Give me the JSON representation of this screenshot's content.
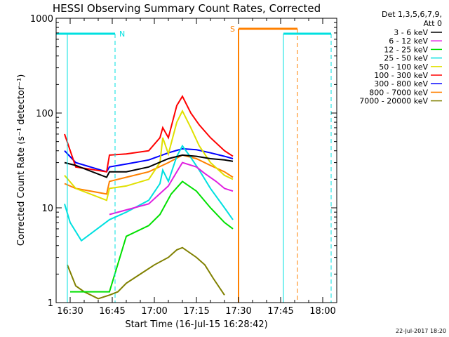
{
  "chart_data": {
    "type": "line",
    "title": "HESSI Observing Summary Count Rates, Corrected",
    "xlabel": "Start Time (16-Jul-15 16:28:42)",
    "ylabel": "Corrected Count Rate (s⁻¹ detector⁻¹)",
    "yscale": "log",
    "ylim": [
      1,
      1000
    ],
    "xlim": [
      "16:25",
      "18:05"
    ],
    "x_ticks": [
      "16:30",
      "16:45",
      "17:00",
      "17:15",
      "17:30",
      "17:45",
      "18:00"
    ],
    "y_ticks": [
      "1",
      "10",
      "100",
      "1000"
    ],
    "legend_header": [
      "Det 1,3,5,6,7,9,",
      "Att 0"
    ],
    "legend_position": "right",
    "timestamp": "22-Jul-2017 18:20",
    "series": [
      {
        "name": "3 - 6 keV",
        "color": "#000000",
        "x": [
          "16:28",
          "16:32",
          "16:43",
          "16:44",
          "16:50",
          "16:58",
          "17:05",
          "17:10",
          "17:15",
          "17:20",
          "17:25",
          "17:28"
        ],
        "values": [
          30,
          28,
          21,
          24,
          24,
          27,
          33,
          36,
          35,
          33,
          32,
          31
        ]
      },
      {
        "name": "6 - 12 keV",
        "color": "#e020e0",
        "x": [
          "16:44",
          "16:50",
          "16:58",
          "17:05",
          "17:08",
          "17:10",
          "17:15",
          "17:18",
          "17:22",
          "17:25",
          "17:28"
        ],
        "values": [
          8.5,
          9.5,
          11,
          17,
          24,
          30,
          27,
          23,
          19,
          16,
          15
        ]
      },
      {
        "name": "12 - 25 keV",
        "color": "#00e000",
        "x": [
          "16:30",
          "16:44",
          "16:50",
          "16:58",
          "17:02",
          "17:06",
          "17:10",
          "17:15",
          "17:20",
          "17:25",
          "17:28"
        ],
        "values": [
          1.3,
          1.3,
          5,
          6.5,
          8.5,
          14,
          19,
          15,
          10,
          7,
          6
        ]
      },
      {
        "name": "25 - 50 keV",
        "color": "#00e0e0",
        "x": [
          "16:28",
          "16:30",
          "16:34",
          "16:44",
          "16:50",
          "16:58",
          "17:02",
          "17:03",
          "17:05",
          "17:08",
          "17:10",
          "17:13",
          "17:16",
          "17:20",
          "17:25",
          "17:28"
        ],
        "values": [
          11,
          7,
          4.5,
          7.5,
          9,
          12,
          18,
          25,
          19,
          35,
          45,
          34,
          25,
          16,
          10,
          7.5
        ]
      },
      {
        "name": "50 - 100 keV",
        "color": "#e0e000",
        "x": [
          "16:28",
          "16:32",
          "16:43",
          "16:44",
          "16:50",
          "16:58",
          "17:02",
          "17:03",
          "17:05",
          "17:08",
          "17:10",
          "17:13",
          "17:16",
          "17:20",
          "17:25",
          "17:28"
        ],
        "values": [
          22,
          16,
          12,
          16,
          17,
          20,
          30,
          55,
          37,
          80,
          105,
          70,
          45,
          30,
          22,
          20
        ]
      },
      {
        "name": "100 - 300 keV",
        "color": "#ff0000",
        "x": [
          "16:28",
          "16:32",
          "16:43",
          "16:44",
          "16:50",
          "16:58",
          "17:02",
          "17:03",
          "17:05",
          "17:08",
          "17:10",
          "17:13",
          "17:16",
          "17:20",
          "17:25",
          "17:28"
        ],
        "values": [
          60,
          27,
          24,
          36,
          37,
          40,
          55,
          70,
          55,
          120,
          150,
          100,
          75,
          55,
          40,
          35
        ]
      },
      {
        "name": "300 - 800 keV",
        "color": "#0000ff",
        "x": [
          "16:28",
          "16:32",
          "16:43",
          "16:44",
          "16:50",
          "16:58",
          "17:05",
          "17:10",
          "17:15",
          "17:20",
          "17:25",
          "17:28"
        ],
        "values": [
          40,
          30,
          24,
          27,
          29,
          32,
          38,
          42,
          41,
          38,
          35,
          33
        ]
      },
      {
        "name": "800 - 7000 keV",
        "color": "#ff8000",
        "x": [
          "16:28",
          "16:32",
          "16:43",
          "16:44",
          "16:50",
          "16:58",
          "17:05",
          "17:10",
          "17:15",
          "17:20",
          "17:25",
          "17:28"
        ],
        "values": [
          18,
          16,
          14,
          19,
          21,
          24,
          30,
          36,
          33,
          28,
          24,
          21
        ]
      },
      {
        "name": "7000 - 20000 keV",
        "color": "#808000",
        "x": [
          "16:29",
          "16:32",
          "16:35",
          "16:40",
          "16:44",
          "16:47",
          "16:50",
          "16:55",
          "17:00",
          "17:05",
          "17:08",
          "17:10",
          "17:15",
          "17:18",
          "17:21",
          "17:25"
        ],
        "values": [
          2.5,
          1.5,
          1.3,
          1.1,
          1.2,
          1.3,
          1.6,
          2.0,
          2.5,
          3.0,
          3.6,
          3.8,
          3.0,
          2.5,
          1.8,
          1.2
        ]
      }
    ],
    "flag_annotations": [
      {
        "label": "N",
        "color": "#00e0e0"
      },
      {
        "label": "S",
        "color": "#ff8000"
      }
    ]
  }
}
